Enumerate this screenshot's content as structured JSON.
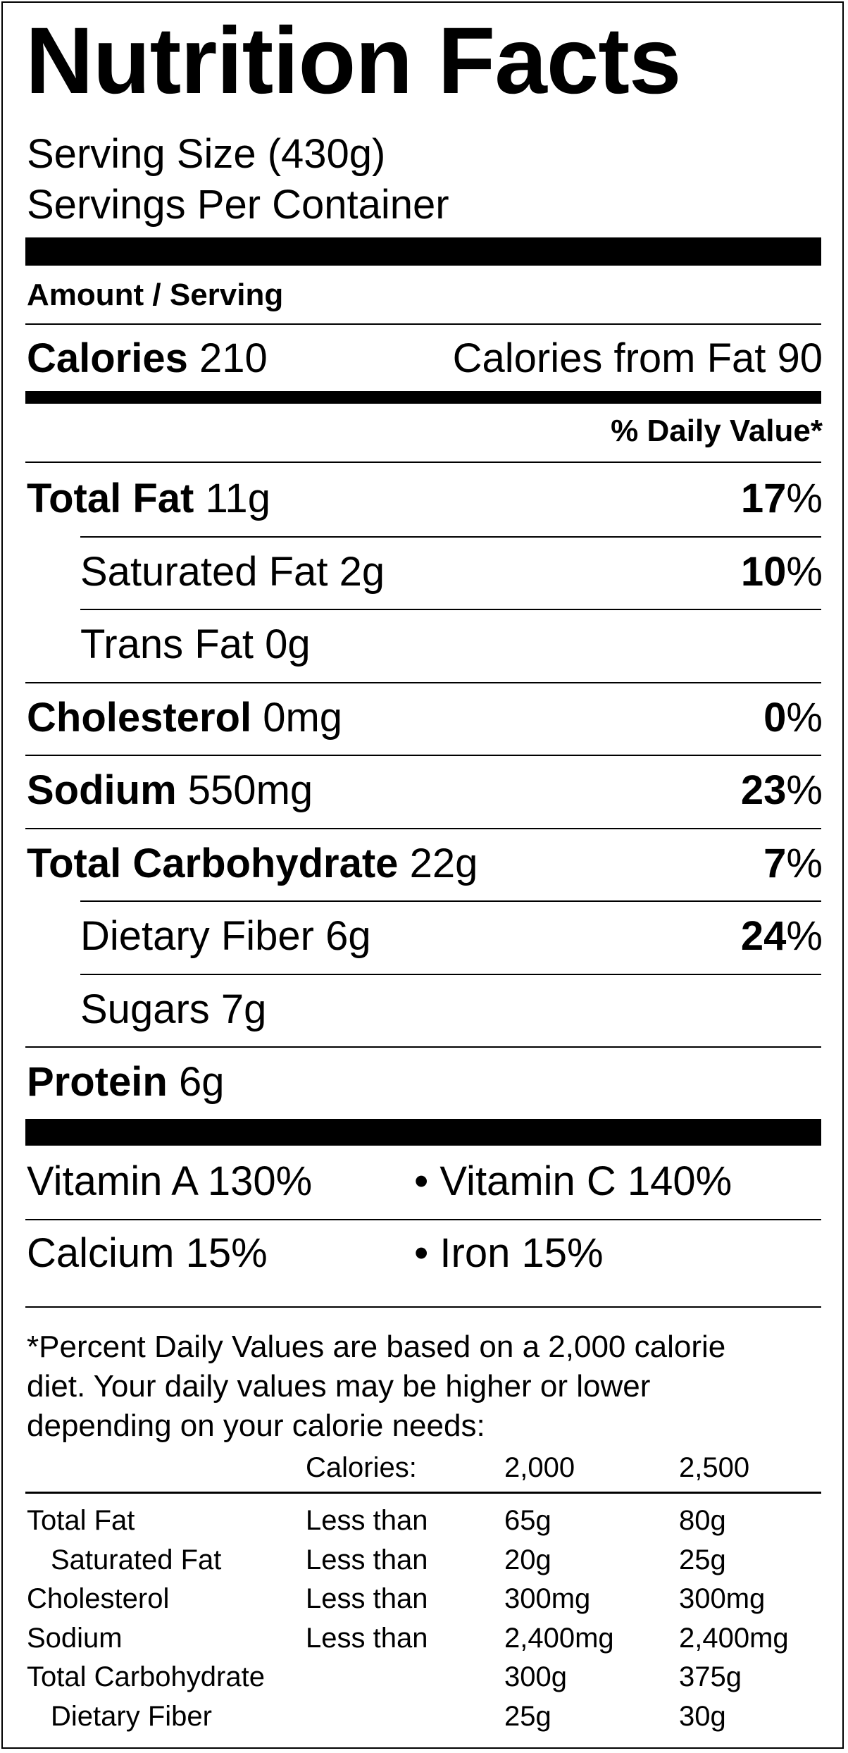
{
  "title": "Nutrition Facts",
  "serving_size": "Serving Size (430g)",
  "servings_per_container": "Servings Per Container",
  "amount_per_serving": "Amount / Serving",
  "calories": {
    "label": "Calories",
    "value": "210",
    "from_fat": "Calories from Fat 90"
  },
  "daily_value_header": "% Daily Value*",
  "nutrients": [
    {
      "name": "Total Fat",
      "amount": "11g",
      "dv": "17",
      "bold": true,
      "indent": false
    },
    {
      "name": "Saturated Fat",
      "amount": "2g",
      "dv": "10",
      "bold": false,
      "indent": true
    },
    {
      "name": "Trans Fat",
      "amount": "0g",
      "dv": "",
      "bold": false,
      "indent": true
    },
    {
      "name": "Cholesterol",
      "amount": "0mg",
      "dv": "0",
      "bold": true,
      "indent": false
    },
    {
      "name": "Sodium",
      "amount": "550mg",
      "dv": "23",
      "bold": true,
      "indent": false
    },
    {
      "name": "Total Carbohydrate",
      "amount": "22g",
      "dv": "7",
      "bold": true,
      "indent": false
    },
    {
      "name": "Dietary Fiber",
      "amount": "6g",
      "dv": "24",
      "bold": false,
      "indent": true
    },
    {
      "name": "Sugars",
      "amount": "7g",
      "dv": "",
      "bold": false,
      "indent": true
    },
    {
      "name": "Protein",
      "amount": "6g",
      "dv": "",
      "bold": true,
      "indent": false
    }
  ],
  "vitamins": {
    "vitamin_a": "Vitamin A 130%",
    "vitamin_c": "• Vitamin C 140%",
    "calcium": "Calcium 15%",
    "iron": "• Iron 15%"
  },
  "footnote": {
    "line1": "*Percent Daily Values are based on a 2,000 calorie",
    "line2": "diet. Your daily values may be higher or lower",
    "line3": "depending on your calorie needs:"
  },
  "reference_table": {
    "header": {
      "label": "Calories:",
      "col1": "2,000",
      "col2": "2,500"
    },
    "rows": [
      {
        "name": "Total Fat",
        "qualifier": "Less than",
        "v1": "65g",
        "v2": "80g",
        "indent": false
      },
      {
        "name": "Saturated Fat",
        "qualifier": "Less than",
        "v1": "20g",
        "v2": "25g",
        "indent": true
      },
      {
        "name": "Cholesterol",
        "qualifier": "Less than",
        "v1": "300mg",
        "v2": "300mg",
        "indent": false
      },
      {
        "name": "Sodium",
        "qualifier": "Less than",
        "v1": "2,400mg",
        "v2": "2,400mg",
        "indent": false
      },
      {
        "name": "Total Carbohydrate",
        "qualifier": "",
        "v1": "300g",
        "v2": "375g",
        "indent": false
      },
      {
        "name": "Dietary Fiber",
        "qualifier": "",
        "v1": "25g",
        "v2": "30g",
        "indent": true
      }
    ]
  }
}
